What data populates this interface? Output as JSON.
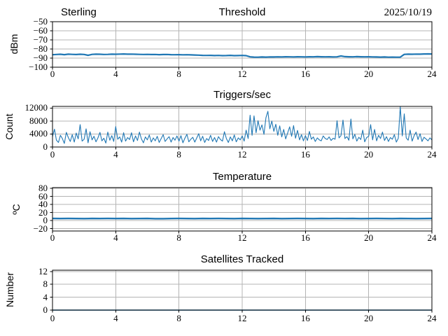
{
  "figure": {
    "background": "#ffffff",
    "frame_color": "#000000",
    "grid_color": "#b4b4b4",
    "line_color": "#1f77b4"
  },
  "chart_data": [
    {
      "id": "threshold",
      "type": "line",
      "title": "Threshold",
      "title_left": "Sterling",
      "title_right": "2025/10/19",
      "ylabel": "dBm",
      "xlim": [
        0,
        24
      ],
      "ylim": [
        -100,
        -50
      ],
      "grid": true,
      "line_width": 2.2,
      "xticks": [
        {
          "v": 0,
          "label": "0"
        },
        {
          "v": 4,
          "label": "4"
        },
        {
          "v": 8,
          "label": "8"
        },
        {
          "v": 12,
          "label": "12"
        },
        {
          "v": 16,
          "label": "16"
        },
        {
          "v": 20,
          "label": "20"
        },
        {
          "v": 24,
          "label": "24"
        }
      ],
      "yticks": [
        {
          "v": -100,
          "label": "−100"
        },
        {
          "v": -90,
          "label": "−90"
        },
        {
          "v": -80,
          "label": "−80"
        },
        {
          "v": -70,
          "label": "−70"
        },
        {
          "v": -60,
          "label": "−60"
        },
        {
          "v": -50,
          "label": "−50"
        }
      ],
      "x_start": 0,
      "x_step": 0.25,
      "values": [
        -86.3,
        -86.0,
        -85.8,
        -86.2,
        -85.7,
        -85.9,
        -86.1,
        -85.8,
        -86.0,
        -86.9,
        -85.9,
        -85.7,
        -85.8,
        -86.0,
        -85.9,
        -85.7,
        -85.8,
        -85.6,
        -85.5,
        -85.7,
        -85.6,
        -85.8,
        -85.9,
        -86.0,
        -85.9,
        -86.1,
        -86.0,
        -86.2,
        -86.1,
        -86.0,
        -86.2,
        -86.3,
        -86.2,
        -86.4,
        -86.3,
        -86.5,
        -86.6,
        -86.8,
        -87.0,
        -87.1,
        -87.0,
        -87.2,
        -87.1,
        -87.3,
        -87.2,
        -87.0,
        -87.3,
        -87.2,
        -87.1,
        -87.3,
        -88.6,
        -88.9,
        -89.0,
        -88.8,
        -88.9,
        -88.7,
        -88.8,
        -88.6,
        -88.7,
        -88.5,
        -88.6,
        -88.7,
        -88.5,
        -88.6,
        -88.7,
        -88.5,
        -88.6,
        -88.4,
        -88.5,
        -88.6,
        -88.5,
        -88.7,
        -88.6,
        -87.6,
        -88.4,
        -88.5,
        -88.6,
        -88.4,
        -88.5,
        -88.6,
        -88.5,
        -88.7,
        -88.8,
        -88.9,
        -88.8,
        -89.0,
        -88.9,
        -89.0,
        -88.9,
        -85.9,
        -85.7,
        -85.8,
        -85.6,
        -85.7,
        -85.5,
        -85.4,
        -85.5
      ]
    },
    {
      "id": "triggers-per-sec",
      "type": "line",
      "title": "Triggers/sec",
      "ylabel": "Count",
      "xlim": [
        0,
        24
      ],
      "ylim": [
        0,
        12500
      ],
      "grid": true,
      "line_width": 1.1,
      "xticks": [
        {
          "v": 0,
          "label": "0"
        },
        {
          "v": 4,
          "label": "4"
        },
        {
          "v": 8,
          "label": "8"
        },
        {
          "v": 12,
          "label": "12"
        },
        {
          "v": 16,
          "label": "16"
        },
        {
          "v": 20,
          "label": "20"
        },
        {
          "v": 24,
          "label": "24"
        }
      ],
      "yticks": [
        {
          "v": 0,
          "label": "0"
        },
        {
          "v": 4000,
          "label": "4000"
        },
        {
          "v": 8000,
          "label": "8000"
        },
        {
          "v": 12000,
          "label": "12000"
        }
      ],
      "x_start": 0,
      "x_step": 0.125,
      "values": [
        3200,
        5500,
        2100,
        1400,
        3600,
        2600,
        1100,
        4500,
        2900,
        1700,
        3800,
        1500,
        4300,
        2500,
        6900,
        1800,
        2400,
        5600,
        1300,
        4700,
        2200,
        3300,
        1600,
        2800,
        4500,
        1900,
        2700,
        1200,
        4600,
        2100,
        3500,
        1700,
        6300,
        2400,
        3100,
        1500,
        4400,
        1800,
        2900,
        2300,
        4400,
        1600,
        3400,
        2000,
        4600,
        2500,
        1300,
        3100,
        2200,
        3700,
        1500,
        2800,
        1900,
        3300,
        1400,
        2600,
        3800,
        1700,
        2500,
        3200,
        1500,
        2900,
        2100,
        3400,
        1800,
        3500,
        1300,
        2700,
        3900,
        1600,
        2400,
        3000,
        1500,
        2800,
        4100,
        1900,
        3300,
        1400,
        2600,
        2000,
        3600,
        1700,
        2900,
        1500,
        3200,
        2300,
        1800,
        4700,
        2600,
        1400,
        3100,
        1900,
        3700,
        1600,
        2800,
        2200,
        3400,
        1800,
        5200,
        2600,
        9800,
        3600,
        9600,
        4400,
        8100,
        5200,
        6800,
        3900,
        9000,
        11000,
        5600,
        8000,
        4800,
        7000,
        3600,
        6500,
        3100,
        5400,
        2500,
        4300,
        6200,
        3300,
        6600,
        2700,
        5100,
        2200,
        3800,
        1900,
        3500,
        2000,
        4800,
        2400,
        3100,
        1700,
        2800,
        2200,
        1900,
        3400,
        2600,
        2300,
        3100,
        2000,
        2700,
        2400,
        8100,
        2800,
        3500,
        8300,
        2600,
        3200,
        2100,
        8600,
        2500,
        3900,
        1800,
        3000,
        2300,
        5200,
        1600,
        2900,
        3300,
        6900,
        2200,
        5400,
        1900,
        3600,
        2600,
        4600,
        2000,
        3200,
        1700,
        2900,
        2400,
        3800,
        1500,
        2700,
        12400,
        3400,
        10200,
        2800,
        2100,
        5200,
        1800,
        3500,
        4600,
        2300,
        4100,
        1700,
        3000,
        2500,
        1900,
        2800,
        2200
      ]
    },
    {
      "id": "temperature",
      "type": "line",
      "title": "Temperature",
      "ylabel": "ºC",
      "xlim": [
        0,
        24
      ],
      "ylim": [
        -26,
        82
      ],
      "grid": true,
      "line_width": 2.4,
      "xticks": [
        {
          "v": 0,
          "label": "0"
        },
        {
          "v": 4,
          "label": "4"
        },
        {
          "v": 8,
          "label": "8"
        },
        {
          "v": 12,
          "label": "12"
        },
        {
          "v": 16,
          "label": "16"
        },
        {
          "v": 20,
          "label": "20"
        },
        {
          "v": 24,
          "label": "24"
        }
      ],
      "yticks": [
        {
          "v": -20,
          "label": "−20"
        },
        {
          "v": 0,
          "label": "0"
        },
        {
          "v": 20,
          "label": "20"
        },
        {
          "v": 40,
          "label": "40"
        },
        {
          "v": 60,
          "label": "60"
        },
        {
          "v": 80,
          "label": "80"
        }
      ],
      "x_start": 0,
      "x_step": 0.5,
      "values": [
        5.1,
        5.0,
        5.2,
        5.0,
        4.9,
        5.1,
        5.0,
        5.2,
        5.0,
        5.1,
        4.9,
        5.0,
        5.1,
        4.6,
        4.7,
        5.0,
        5.1,
        5.0,
        4.9,
        5.1,
        5.0,
        5.2,
        5.0,
        4.9,
        5.1,
        5.0,
        4.8,
        5.0,
        5.1,
        4.9,
        5.0,
        5.1,
        5.0,
        4.9,
        5.1,
        5.0,
        5.2,
        5.0,
        5.1,
        4.9,
        5.0,
        5.1,
        5.0,
        4.9,
        5.1,
        5.0,
        4.9,
        5.0,
        5.1
      ]
    },
    {
      "id": "satellites-tracked",
      "type": "line",
      "title": "Satellites Tracked",
      "ylabel": "Number",
      "xlim": [
        0,
        24
      ],
      "ylim": [
        0,
        12.4
      ],
      "grid": true,
      "line_width": 1.6,
      "xticks": [
        {
          "v": 0,
          "label": "0"
        },
        {
          "v": 4,
          "label": "4"
        },
        {
          "v": 8,
          "label": "8"
        },
        {
          "v": 12,
          "label": "12"
        },
        {
          "v": 16,
          "label": "16"
        },
        {
          "v": 20,
          "label": "20"
        },
        {
          "v": 24,
          "label": "24"
        }
      ],
      "yticks": [
        {
          "v": 0,
          "label": "0"
        },
        {
          "v": 4,
          "label": "4"
        },
        {
          "v": 8,
          "label": "8"
        },
        {
          "v": 12,
          "label": "12"
        }
      ],
      "x_start": 0,
      "x_step": 24,
      "values": [
        0,
        0
      ]
    }
  ]
}
